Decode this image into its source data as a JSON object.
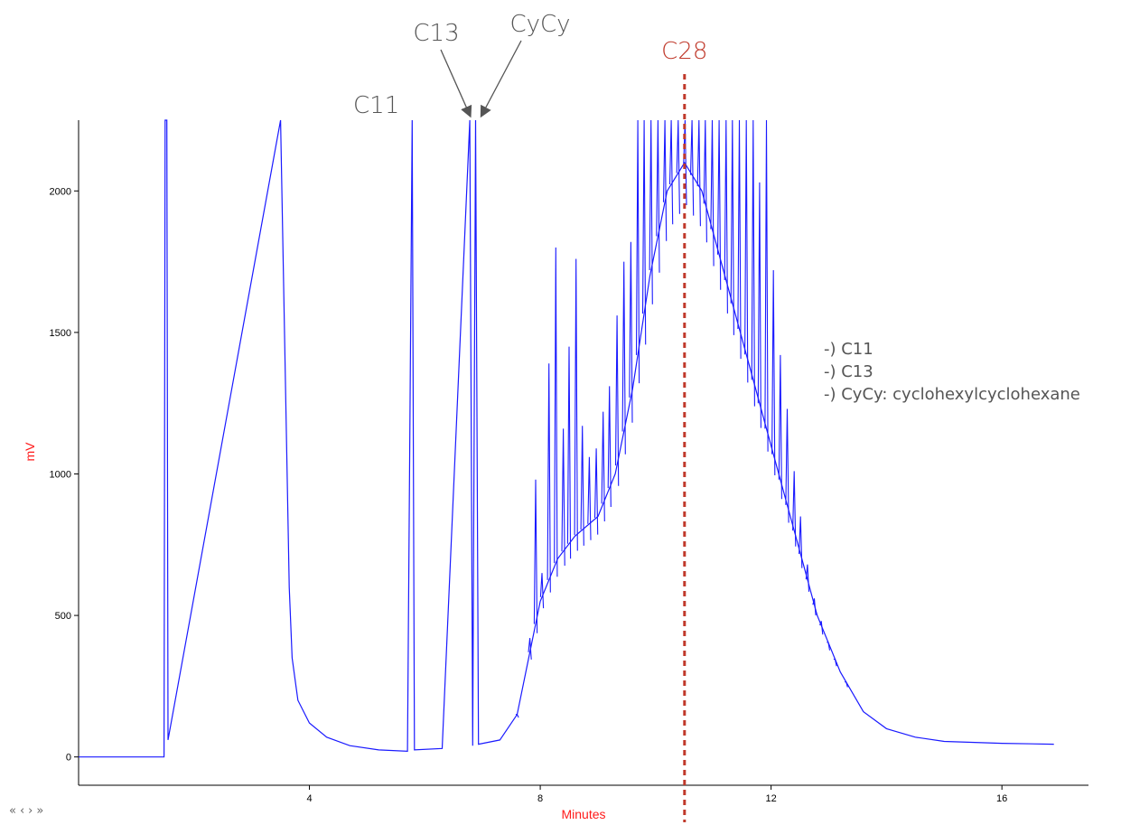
{
  "chart_data": {
    "type": "line",
    "xlabel": "Minutes",
    "ylabel": "mV",
    "xlim": [
      0,
      17.5
    ],
    "ylim": [
      -100,
      2250
    ],
    "x_ticks": [
      4,
      8,
      12,
      16
    ],
    "y_ticks": [
      0,
      500,
      1000,
      1500,
      2000
    ],
    "series_color": "#1a1aff",
    "label_color": "#ff1a1a",
    "marker_color": "#c0392b",
    "annotations": [
      {
        "text": "C11",
        "x": 5.78
      },
      {
        "text": "C13",
        "x": 6.8
      },
      {
        "text": "CyCy",
        "x": 6.95
      }
    ],
    "vertical_marker": {
      "text": "C28",
      "x": 10.5
    },
    "legend": [
      "-) C11",
      "-) C13",
      "-) CyCy: cyclohexylcyclohexane"
    ],
    "baseline_points": [
      [
        0,
        0
      ],
      [
        1.48,
        0
      ],
      [
        1.5,
        2250
      ],
      [
        1.53,
        2250
      ],
      [
        1.55,
        60
      ],
      [
        3.5,
        2250
      ],
      [
        3.65,
        600
      ],
      [
        3.7,
        350
      ],
      [
        3.8,
        200
      ],
      [
        4.0,
        120
      ],
      [
        4.3,
        70
      ],
      [
        4.7,
        40
      ],
      [
        5.2,
        25
      ],
      [
        5.7,
        20
      ],
      [
        5.78,
        2250
      ],
      [
        5.82,
        25
      ],
      [
        6.3,
        30
      ],
      [
        6.78,
        2250
      ],
      [
        6.83,
        40
      ],
      [
        6.88,
        2250
      ],
      [
        6.93,
        45
      ],
      [
        7.3,
        60
      ],
      [
        7.6,
        150
      ],
      [
        7.8,
        350
      ],
      [
        8.0,
        550
      ],
      [
        8.3,
        700
      ],
      [
        8.6,
        780
      ],
      [
        9.0,
        850
      ],
      [
        9.3,
        1000
      ],
      [
        9.6,
        1300
      ],
      [
        9.9,
        1700
      ],
      [
        10.2,
        2000
      ],
      [
        10.5,
        2100
      ],
      [
        10.8,
        2000
      ],
      [
        11.2,
        1700
      ],
      [
        11.6,
        1400
      ],
      [
        12.0,
        1100
      ],
      [
        12.4,
        800
      ],
      [
        12.8,
        500
      ],
      [
        13.2,
        300
      ],
      [
        13.6,
        160
      ],
      [
        14.0,
        100
      ],
      [
        14.5,
        70
      ],
      [
        15.0,
        55
      ],
      [
        16.0,
        48
      ],
      [
        16.9,
        45
      ]
    ],
    "peaks": [
      [
        7.6,
        150
      ],
      [
        7.82,
        420
      ],
      [
        7.92,
        980
      ],
      [
        8.03,
        650
      ],
      [
        8.15,
        1390
      ],
      [
        8.27,
        1800
      ],
      [
        8.4,
        1160
      ],
      [
        8.5,
        1450
      ],
      [
        8.62,
        1760
      ],
      [
        8.73,
        1170
      ],
      [
        8.85,
        1060
      ],
      [
        8.97,
        1090
      ],
      [
        9.09,
        1220
      ],
      [
        9.2,
        1310
      ],
      [
        9.33,
        1560
      ],
      [
        9.45,
        1750
      ],
      [
        9.57,
        1820
      ],
      [
        9.69,
        2250
      ],
      [
        9.8,
        2250
      ],
      [
        9.92,
        2250
      ],
      [
        10.04,
        2250
      ],
      [
        10.16,
        2250
      ],
      [
        10.27,
        2250
      ],
      [
        10.39,
        2250
      ],
      [
        10.51,
        2250
      ],
      [
        10.63,
        2250
      ],
      [
        10.75,
        2250
      ],
      [
        10.86,
        2250
      ],
      [
        10.98,
        2250
      ],
      [
        11.1,
        2250
      ],
      [
        11.22,
        2250
      ],
      [
        11.33,
        2250
      ],
      [
        11.45,
        2250
      ],
      [
        11.57,
        2250
      ],
      [
        11.69,
        2250
      ],
      [
        11.8,
        2030
      ],
      [
        11.92,
        2250
      ],
      [
        12.04,
        1720
      ],
      [
        12.16,
        1420
      ],
      [
        12.28,
        1230
      ],
      [
        12.4,
        1010
      ],
      [
        12.51,
        850
      ],
      [
        12.63,
        680
      ],
      [
        12.75,
        560
      ],
      [
        12.87,
        480
      ],
      [
        12.99,
        380
      ],
      [
        13.11,
        300
      ],
      [
        13.3,
        240
      ]
    ]
  }
}
